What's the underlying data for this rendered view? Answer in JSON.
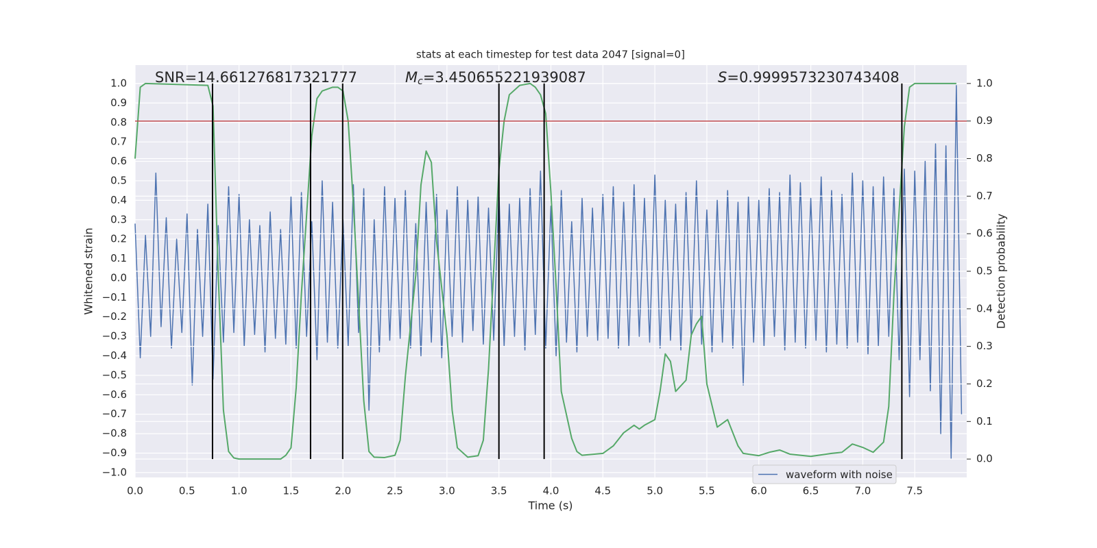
{
  "chart_data": {
    "type": "line",
    "title": "stats at each timestep for test data 2047 [signal=0]",
    "xlabel": "Time (s)",
    "ylabel": "Whitened strain",
    "y2label": "Detection probability",
    "annotations": [
      {
        "text": "SNR=14.661276817321777"
      },
      {
        "symbol": "M",
        "sub": "c",
        "text": "=3.450655221939087"
      },
      {
        "symbol": "S",
        "text": "=0.9999573230743408"
      }
    ],
    "xlim": [
      0,
      8.0
    ],
    "ylim": [
      -1.025,
      1.095
    ],
    "y2lim": [
      -0.049,
      1.049
    ],
    "xticks": [
      {
        "value": 0,
        "label": "0.0"
      },
      0.5,
      {
        "value": 1,
        "label": "1.0"
      },
      1.5,
      {
        "value": 2,
        "label": "2.0"
      },
      2.5,
      {
        "value": 3,
        "label": "3.0"
      },
      3.5,
      {
        "value": 4,
        "label": "4.0"
      },
      4.5,
      {
        "value": 5,
        "label": "5.0"
      },
      5.5,
      {
        "value": 6,
        "label": "6.0"
      },
      6.5,
      {
        "value": 7,
        "label": "7.0"
      },
      7.5
    ],
    "yticks": [
      {
        "value": -1,
        "label": "−1.0"
      },
      {
        "value": -0.9,
        "label": "−0.9"
      },
      {
        "value": -0.8,
        "label": "−0.8"
      },
      {
        "value": -0.7,
        "label": "−0.7"
      },
      {
        "value": -0.6,
        "label": "−0.6"
      },
      {
        "value": -0.5,
        "label": "−0.5"
      },
      {
        "value": -0.4,
        "label": "−0.4"
      },
      {
        "value": -0.3,
        "label": "−0.3"
      },
      {
        "value": -0.2,
        "label": "−0.2"
      },
      {
        "value": -0.1,
        "label": "−0.1"
      },
      {
        "value": 0,
        "label": "0.0"
      },
      0.1,
      0.2,
      0.3,
      0.4,
      0.5,
      0.6,
      0.7,
      0.8,
      0.9,
      {
        "value": 1,
        "label": "1.0"
      }
    ],
    "y2ticks": [
      {
        "value": 0,
        "label": "0.0"
      },
      0.1,
      0.2,
      0.3,
      0.4,
      0.5,
      0.6,
      0.7,
      0.8,
      0.9,
      {
        "value": 1,
        "label": "1.0"
      }
    ],
    "grid": true,
    "legend": "lower right",
    "threshold": {
      "value": 0.9,
      "axis": "y2",
      "color": "#c44e52"
    },
    "vlines": {
      "x": [
        0.745,
        1.688,
        1.997,
        3.5,
        3.935,
        7.376
      ],
      "ymin": 0,
      "ymax": 1,
      "axis": "y2",
      "color": "#000000"
    },
    "series": [
      {
        "name": "waveform with noise",
        "color": "#4c72b0",
        "axis": "y",
        "x": [
          0,
          0.05,
          0.1,
          0.15,
          0.2,
          0.25,
          0.3,
          0.35,
          0.4,
          0.45,
          0.5,
          0.55,
          0.6,
          0.65,
          0.7,
          0.75,
          0.8,
          0.85,
          0.9,
          0.95,
          1,
          1.05,
          1.1,
          1.15,
          1.2,
          1.25,
          1.3,
          1.35,
          1.4,
          1.45,
          1.5,
          1.55,
          1.6,
          1.65,
          1.7,
          1.75,
          1.8,
          1.85,
          1.9,
          1.95,
          2,
          2.05,
          2.1,
          2.15,
          2.2,
          2.25,
          2.3,
          2.35,
          2.4,
          2.45,
          2.5,
          2.55,
          2.6,
          2.65,
          2.7,
          2.75,
          2.8,
          2.85,
          2.9,
          2.95,
          3,
          3.05,
          3.1,
          3.15,
          3.2,
          3.25,
          3.3,
          3.35,
          3.4,
          3.45,
          3.5,
          3.55,
          3.6,
          3.65,
          3.7,
          3.75,
          3.8,
          3.85,
          3.9,
          3.95,
          4,
          4.05,
          4.1,
          4.15,
          4.2,
          4.25,
          4.3,
          4.35,
          4.4,
          4.45,
          4.5,
          4.55,
          4.6,
          4.65,
          4.7,
          4.75,
          4.8,
          4.85,
          4.9,
          4.95,
          5,
          5.05,
          5.1,
          5.15,
          5.2,
          5.25,
          5.3,
          5.35,
          5.4,
          5.45,
          5.5,
          5.55,
          5.6,
          5.65,
          5.7,
          5.75,
          5.8,
          5.85,
          5.9,
          5.95,
          6,
          6.05,
          6.1,
          6.15,
          6.2,
          6.25,
          6.3,
          6.35,
          6.4,
          6.45,
          6.5,
          6.55,
          6.6,
          6.65,
          6.7,
          6.75,
          6.8,
          6.85,
          6.9,
          6.95,
          7,
          7.05,
          7.1,
          7.15,
          7.2,
          7.25,
          7.3,
          7.35,
          7.4,
          7.45,
          7.5,
          7.55,
          7.6,
          7.65,
          7.7,
          7.75,
          7.8,
          7.85,
          7.9,
          7.95
        ],
        "values": [
          0.28,
          -0.41,
          0.22,
          -0.3,
          0.54,
          -0.25,
          0.31,
          -0.36,
          0.2,
          -0.28,
          0.33,
          -0.55,
          0.25,
          -0.3,
          0.38,
          -0.52,
          0.27,
          -0.33,
          0.47,
          -0.28,
          0.43,
          -0.35,
          0.3,
          -0.29,
          0.27,
          -0.38,
          0.34,
          -0.31,
          0.25,
          -0.34,
          0.42,
          -0.36,
          0.44,
          -0.3,
          0.29,
          -0.42,
          0.5,
          -0.33,
          0.39,
          -0.36,
          0.3,
          -0.35,
          0.48,
          -0.28,
          0.46,
          -0.68,
          0.3,
          -0.38,
          0.47,
          -0.32,
          0.41,
          -0.31,
          0.45,
          -0.36,
          0.28,
          -0.4,
          0.39,
          -0.33,
          0.43,
          -0.41,
          0.35,
          -0.3,
          0.47,
          -0.33,
          0.4,
          -0.27,
          0.42,
          -0.34,
          0.36,
          -0.32,
          0.44,
          -0.35,
          0.38,
          -0.3,
          0.41,
          -0.37,
          0.46,
          -0.29,
          0.55,
          -0.36,
          0.37,
          -0.4,
          0.45,
          -0.33,
          0.29,
          -0.38,
          0.41,
          -0.3,
          0.36,
          -0.32,
          0.43,
          -0.31,
          0.47,
          -0.36,
          0.39,
          -0.35,
          0.48,
          -0.3,
          0.41,
          -0.33,
          0.53,
          -0.36,
          0.4,
          -0.32,
          0.38,
          -0.37,
          0.44,
          -0.3,
          0.5,
          -0.34,
          0.35,
          -0.38,
          0.4,
          -0.33,
          0.45,
          -0.36,
          0.39,
          -0.55,
          0.42,
          -0.33,
          0.4,
          -0.35,
          0.46,
          -0.3,
          0.44,
          -0.37,
          0.53,
          -0.33,
          0.49,
          -0.36,
          0.41,
          -0.32,
          0.52,
          -0.38,
          0.45,
          -0.34,
          0.43,
          -0.36,
          0.54,
          -0.33,
          0.5,
          -0.39,
          0.47,
          -0.35,
          0.52,
          -0.3,
          0.46,
          -0.42,
          0.56,
          -0.61,
          0.55,
          -0.42,
          0.6,
          -0.58,
          0.69,
          -0.8,
          0.68,
          -0.93,
          0.99,
          -0.7
        ]
      },
      {
        "name": "Detection probability",
        "color": "#55a868",
        "axis": "y2",
        "x": [
          0,
          0.05,
          0.1,
          0.7,
          0.75,
          0.8,
          0.85,
          0.9,
          0.95,
          1.0,
          1.4,
          1.45,
          1.5,
          1.55,
          1.6,
          1.7,
          1.75,
          1.8,
          1.9,
          1.95,
          2.0,
          2.05,
          2.1,
          2.2,
          2.25,
          2.3,
          2.4,
          2.5,
          2.55,
          2.6,
          2.7,
          2.75,
          2.8,
          2.85,
          2.9,
          3.0,
          3.05,
          3.1,
          3.2,
          3.3,
          3.35,
          3.4,
          3.5,
          3.55,
          3.6,
          3.7,
          3.8,
          3.85,
          3.9,
          3.95,
          4.0,
          4.05,
          4.1,
          4.2,
          4.25,
          4.3,
          4.5,
          4.6,
          4.7,
          4.8,
          4.85,
          4.9,
          5.0,
          5.05,
          5.1,
          5.15,
          5.2,
          5.3,
          5.35,
          5.4,
          5.45,
          5.5,
          5.6,
          5.7,
          5.8,
          5.85,
          5.9,
          6.0,
          6.1,
          6.2,
          6.3,
          6.5,
          6.7,
          6.8,
          6.9,
          7.0,
          7.1,
          7.2,
          7.25,
          7.3,
          7.4,
          7.45,
          7.5,
          7.9
        ],
        "values": [
          0.8,
          0.99,
          1.0,
          0.995,
          0.94,
          0.49,
          0.13,
          0.02,
          0.003,
          0.0,
          0.0,
          0.01,
          0.03,
          0.19,
          0.44,
          0.86,
          0.96,
          0.98,
          0.99,
          0.99,
          0.98,
          0.9,
          0.68,
          0.155,
          0.02,
          0.005,
          0.004,
          0.01,
          0.05,
          0.22,
          0.49,
          0.73,
          0.82,
          0.79,
          0.58,
          0.33,
          0.13,
          0.03,
          0.005,
          0.009,
          0.05,
          0.24,
          0.77,
          0.9,
          0.97,
          0.995,
          1.0,
          0.99,
          0.97,
          0.92,
          0.71,
          0.46,
          0.18,
          0.055,
          0.02,
          0.01,
          0.015,
          0.035,
          0.07,
          0.09,
          0.08,
          0.09,
          0.105,
          0.18,
          0.28,
          0.26,
          0.18,
          0.21,
          0.33,
          0.36,
          0.38,
          0.2,
          0.085,
          0.105,
          0.035,
          0.015,
          0.013,
          0.009,
          0.018,
          0.024,
          0.013,
          0.007,
          0.015,
          0.018,
          0.04,
          0.031,
          0.018,
          0.045,
          0.14,
          0.44,
          0.885,
          0.99,
          1.0,
          1.0
        ]
      }
    ]
  }
}
